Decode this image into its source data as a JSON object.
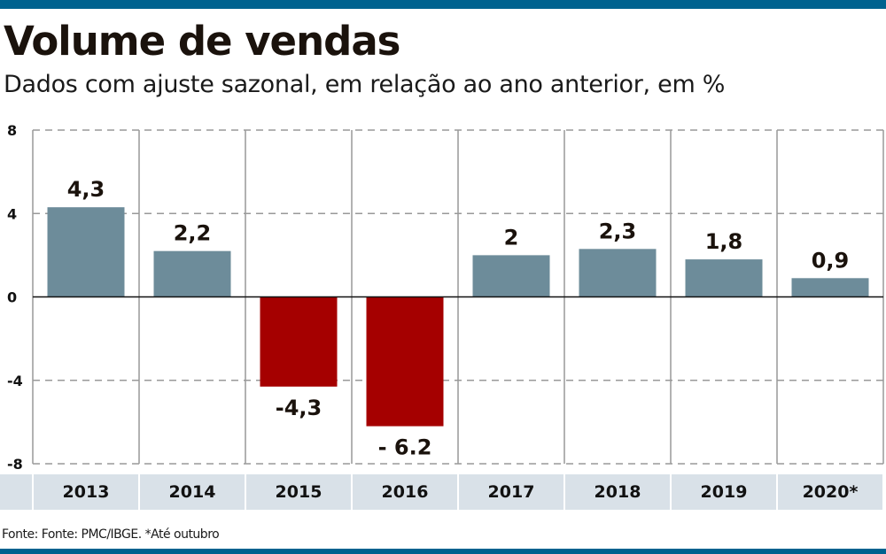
{
  "title": "Volume de vendas",
  "subtitle": "Dados com ajuste sazonal, em relação ao ano anterior, em %",
  "source": "Fonte: Fonte: PMC/IBGE. *Até outubro",
  "colors": {
    "brand_bar": "#00628f",
    "positive": "#6d8c9a",
    "negative": "#a50000",
    "year_band": "#d9e1e8",
    "grid": "#999999"
  },
  "chart_data": {
    "type": "bar",
    "title": "Volume de vendas",
    "subtitle": "Dados com ajuste sazonal, em relação ao ano anterior, em %",
    "xlabel": "",
    "ylabel": "",
    "categories": [
      "2013",
      "2014",
      "2015",
      "2016",
      "2017",
      "2018",
      "2019",
      "2020*"
    ],
    "values": [
      4.3,
      2.2,
      -4.3,
      -6.2,
      2.0,
      2.3,
      1.8,
      0.9
    ],
    "data_labels": [
      "4,3",
      "2,2",
      "-4,3",
      "- 6.2",
      "2",
      "2,3",
      "1,8",
      "0,9"
    ],
    "ylim": [
      -8,
      8
    ],
    "yticks": [
      8,
      4,
      0,
      -4,
      -8
    ],
    "ytick_labels": [
      "8",
      "4",
      "0",
      "-4",
      "-8"
    ],
    "grid": "horizontal dashed",
    "legend": "none",
    "annotations": [
      "*Até outubro"
    ]
  }
}
